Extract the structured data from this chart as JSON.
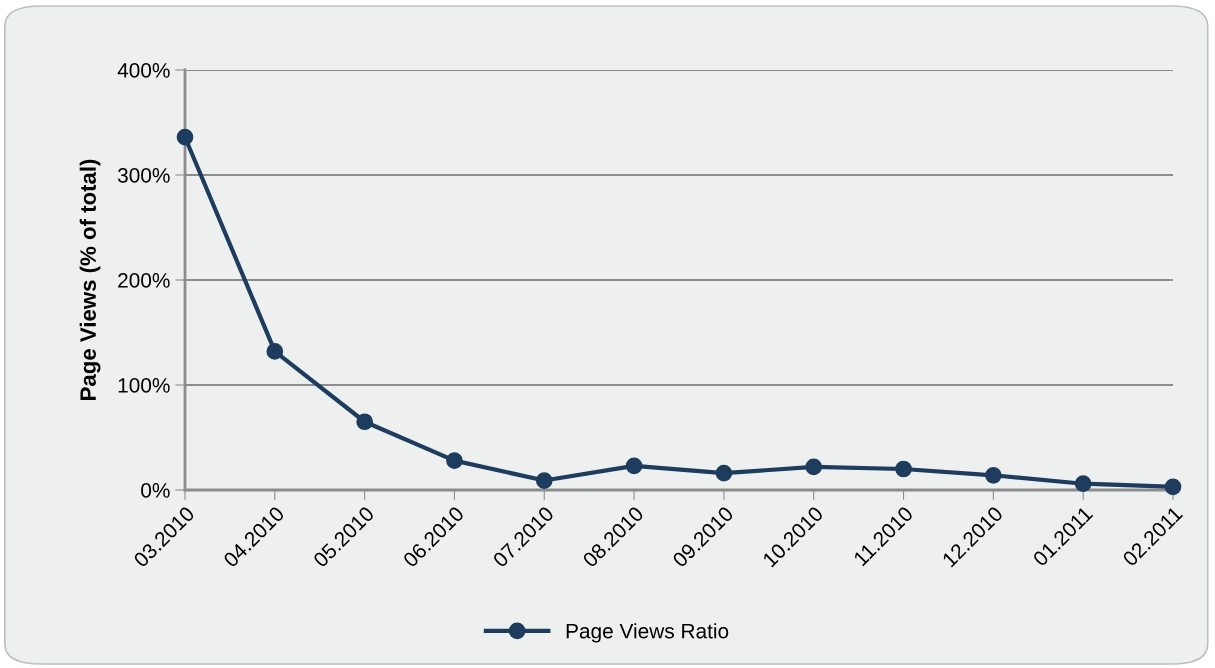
{
  "chart_data": {
    "type": "line",
    "ylabel": "Page Views (% of total)",
    "categories": [
      "03.2010",
      "04.2010",
      "05.2010",
      "06.2010",
      "07.2010",
      "08.2010",
      "09.2010",
      "10.2010",
      "11.2010",
      "12.2010",
      "01.2011",
      "02.2011"
    ],
    "series": [
      {
        "name": "Page Views Ratio",
        "color": "#1d3c5e",
        "values": [
          336,
          132,
          65,
          28,
          9,
          23,
          16,
          22,
          20,
          14,
          6,
          3
        ]
      }
    ],
    "ylim": [
      0,
      400
    ],
    "yticks": [
      {
        "value": 0,
        "label": "0%"
      },
      {
        "value": 100,
        "label": "100%"
      },
      {
        "value": 200,
        "label": "200%"
      },
      {
        "value": 300,
        "label": "300%"
      },
      {
        "value": 400,
        "label": "400%"
      }
    ],
    "grid": "y",
    "legend": "bottom",
    "marker": "circle",
    "line_style": "solid"
  }
}
